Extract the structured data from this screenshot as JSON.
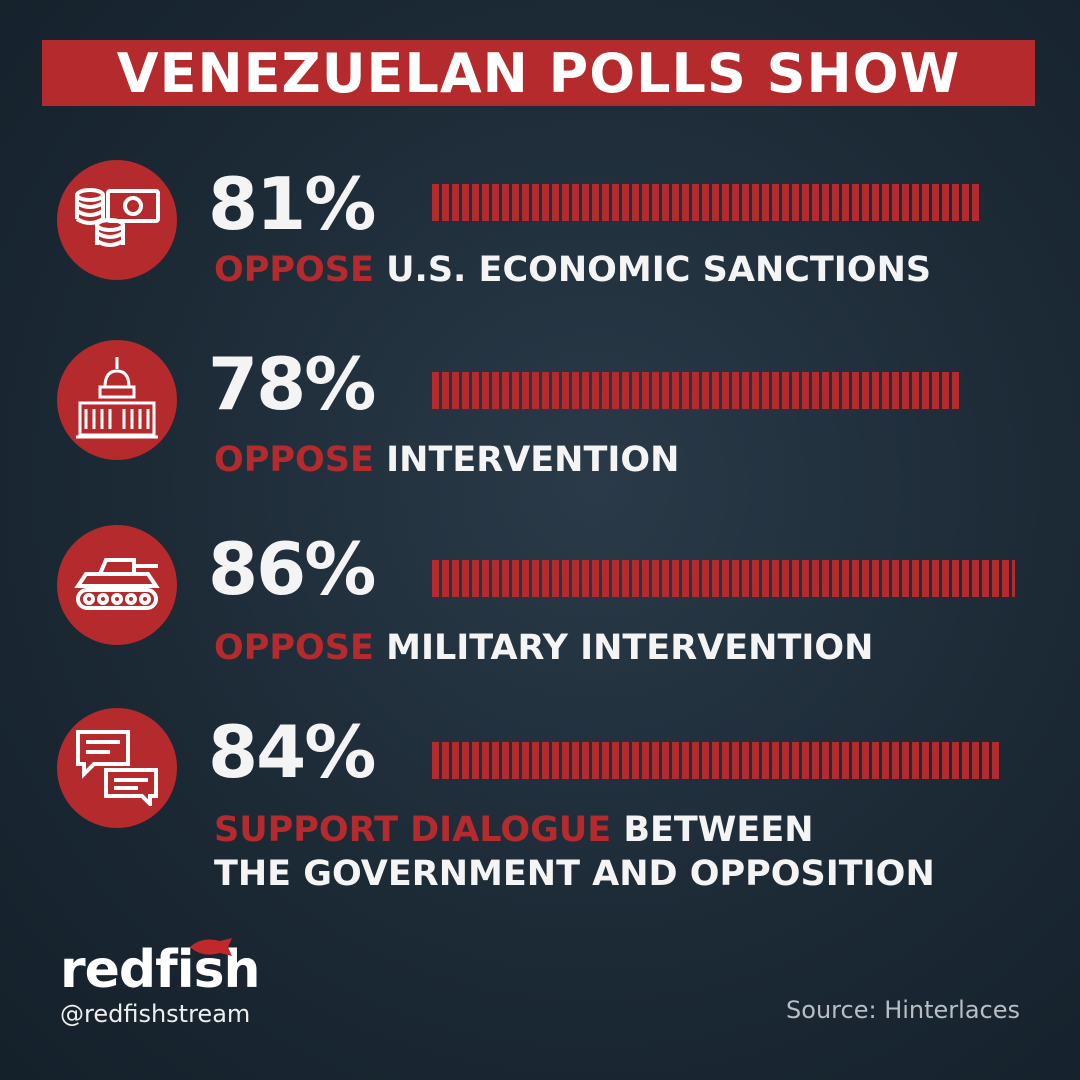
{
  "title": "VENEZUELAN POLLS SHOW",
  "accent_color": "#b52a2c",
  "chart_data": {
    "type": "bar",
    "orientation": "horizontal",
    "unit": "%",
    "xlim": [
      0,
      100
    ],
    "items": [
      {
        "value": 81,
        "value_label": "81%",
        "highlight": "OPPOSE",
        "rest": "U.S. ECONOMIC SANCTIONS",
        "icon": "money-coins-icon"
      },
      {
        "value": 78,
        "value_label": "78%",
        "highlight": "OPPOSE",
        "rest": "INTERVENTION",
        "icon": "capitol-building-icon"
      },
      {
        "value": 86,
        "value_label": "86%",
        "highlight": "OPPOSE",
        "rest": "MILITARY INTERVENTION",
        "icon": "tank-icon"
      },
      {
        "value": 84,
        "value_label": "84%",
        "highlight": "SUPPORT DIALOGUE",
        "rest": "BETWEEN",
        "rest2": "THE GOVERNMENT AND OPPOSITION",
        "icon": "chat-bubbles-icon"
      }
    ]
  },
  "footer": {
    "logo": "redfish",
    "handle": "@redfishstream",
    "source": "Source: Hinterlaces"
  }
}
